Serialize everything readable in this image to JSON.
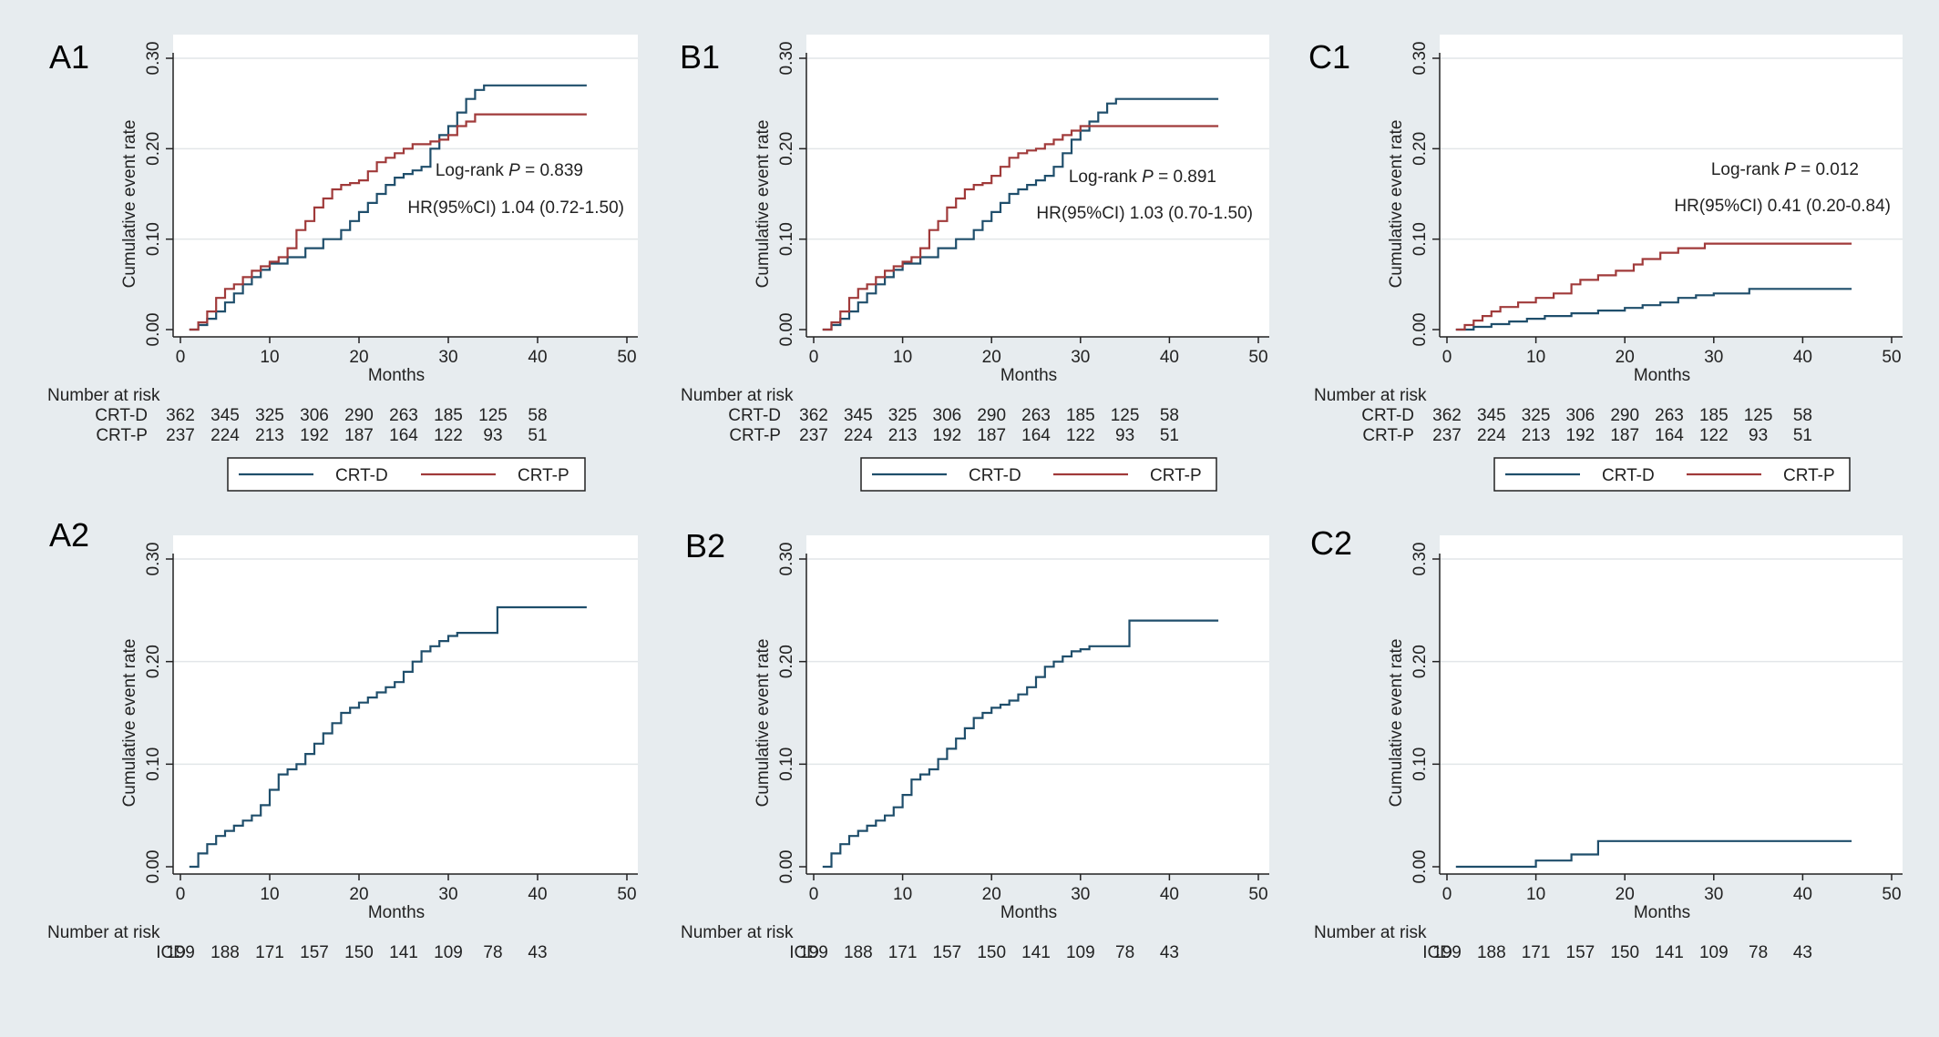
{
  "colors": {
    "background": "#e7ecef",
    "plot_area": "#ffffff",
    "gridline": "#e2e6e9",
    "crt_d": "#1f4e6b",
    "crt_p": "#a03a3a",
    "icd": "#1f4e6b"
  },
  "chart_data": [
    {
      "panel": "A1",
      "type": "line",
      "xlabel": "Months",
      "ylabel": "Cumulative event rate",
      "xlim": [
        0,
        50
      ],
      "ylim": [
        0,
        0.3
      ],
      "xticks": [
        "0",
        "10",
        "20",
        "30",
        "40",
        "50"
      ],
      "yticks": [
        "0.00",
        "0.10",
        "0.20",
        "0.30"
      ],
      "grid": true,
      "annotations": [
        {
          "prefix": "Log-rank ",
          "italic": "P",
          "suffix": " = 0.839"
        },
        {
          "text": "HR(95%CI) 1.04 (0.72-1.50)"
        }
      ],
      "series": [
        {
          "name": "CRT-D",
          "color": "#1f4e6b",
          "x": [
            1,
            2,
            3,
            4,
            5,
            6,
            7,
            8,
            9,
            10,
            12,
            14,
            16,
            18,
            19,
            20,
            21,
            22,
            23,
            24,
            25,
            26,
            27,
            28,
            29,
            30,
            31,
            32,
            33,
            34,
            45.5
          ],
          "y": [
            0,
            0.005,
            0.012,
            0.02,
            0.03,
            0.04,
            0.05,
            0.058,
            0.066,
            0.073,
            0.08,
            0.09,
            0.1,
            0.11,
            0.12,
            0.13,
            0.14,
            0.15,
            0.16,
            0.168,
            0.172,
            0.176,
            0.18,
            0.2,
            0.215,
            0.225,
            0.24,
            0.255,
            0.265,
            0.27,
            0.27
          ]
        },
        {
          "name": "CRT-P",
          "color": "#a03a3a",
          "x": [
            1,
            2,
            3,
            4,
            5,
            6,
            7,
            8,
            9,
            10,
            11,
            12,
            13,
            14,
            15,
            16,
            17,
            18,
            19,
            20,
            21,
            22,
            23,
            24,
            25,
            26,
            27,
            28,
            29,
            30,
            31,
            32,
            33,
            45.5
          ],
          "y": [
            0,
            0.008,
            0.02,
            0.035,
            0.045,
            0.05,
            0.058,
            0.065,
            0.07,
            0.075,
            0.08,
            0.09,
            0.11,
            0.12,
            0.135,
            0.145,
            0.155,
            0.16,
            0.162,
            0.165,
            0.175,
            0.185,
            0.19,
            0.195,
            0.2,
            0.205,
            0.205,
            0.208,
            0.21,
            0.215,
            0.225,
            0.23,
            0.238,
            0.238
          ]
        }
      ],
      "risk_table": {
        "title": "Number at risk",
        "rows": [
          {
            "label": "CRT-D",
            "values": [
              "362",
              "345",
              "325",
              "306",
              "290",
              "263",
              "185",
              "125",
              "58"
            ]
          },
          {
            "label": "CRT-P",
            "values": [
              "237",
              "224",
              "213",
              "192",
              "187",
              "164",
              "122",
              "93",
              "51"
            ]
          }
        ]
      },
      "legend": {
        "placement": "bottom",
        "items": [
          "CRT-D",
          "CRT-P"
        ]
      }
    },
    {
      "panel": "B1",
      "type": "line",
      "xlabel": "Months",
      "ylabel": "Cumulative event rate",
      "xlim": [
        0,
        50
      ],
      "ylim": [
        0,
        0.3
      ],
      "xticks": [
        "0",
        "10",
        "20",
        "30",
        "40",
        "50"
      ],
      "yticks": [
        "0.00",
        "0.10",
        "0.20",
        "0.30"
      ],
      "grid": true,
      "annotations": [
        {
          "prefix": "Log-rank ",
          "italic": "P",
          "suffix": " = 0.891"
        },
        {
          "text": "HR(95%CI) 1.03 (0.70-1.50)"
        }
      ],
      "series": [
        {
          "name": "CRT-D",
          "color": "#1f4e6b",
          "x": [
            1,
            2,
            3,
            4,
            5,
            6,
            7,
            8,
            9,
            10,
            12,
            14,
            16,
            18,
            19,
            20,
            21,
            22,
            23,
            24,
            25,
            26,
            27,
            28,
            29,
            30,
            31,
            32,
            33,
            34,
            45.5
          ],
          "y": [
            0,
            0.005,
            0.012,
            0.02,
            0.03,
            0.04,
            0.05,
            0.058,
            0.066,
            0.073,
            0.08,
            0.09,
            0.1,
            0.11,
            0.12,
            0.13,
            0.14,
            0.15,
            0.155,
            0.16,
            0.165,
            0.17,
            0.18,
            0.195,
            0.21,
            0.22,
            0.23,
            0.24,
            0.25,
            0.255,
            0.255
          ]
        },
        {
          "name": "CRT-P",
          "color": "#a03a3a",
          "x": [
            1,
            2,
            3,
            4,
            5,
            6,
            7,
            8,
            9,
            10,
            11,
            12,
            13,
            14,
            15,
            16,
            17,
            18,
            19,
            20,
            21,
            22,
            23,
            24,
            25,
            26,
            27,
            28,
            29,
            30,
            45.5
          ],
          "y": [
            0,
            0.008,
            0.02,
            0.035,
            0.045,
            0.05,
            0.058,
            0.065,
            0.07,
            0.075,
            0.08,
            0.09,
            0.11,
            0.12,
            0.135,
            0.145,
            0.155,
            0.16,
            0.162,
            0.17,
            0.18,
            0.19,
            0.195,
            0.198,
            0.2,
            0.205,
            0.21,
            0.215,
            0.22,
            0.225,
            0.225
          ]
        }
      ],
      "risk_table": {
        "title": "Number at risk",
        "rows": [
          {
            "label": "CRT-D",
            "values": [
              "362",
              "345",
              "325",
              "306",
              "290",
              "263",
              "185",
              "125",
              "58"
            ]
          },
          {
            "label": "CRT-P",
            "values": [
              "237",
              "224",
              "213",
              "192",
              "187",
              "164",
              "122",
              "93",
              "51"
            ]
          }
        ]
      },
      "legend": {
        "placement": "bottom",
        "items": [
          "CRT-D",
          "CRT-P"
        ]
      }
    },
    {
      "panel": "C1",
      "type": "line",
      "xlabel": "Months",
      "ylabel": "Cumulative event rate",
      "xlim": [
        0,
        50
      ],
      "ylim": [
        0,
        0.3
      ],
      "xticks": [
        "0",
        "10",
        "20",
        "30",
        "40",
        "50"
      ],
      "yticks": [
        "0.00",
        "0.10",
        "0.20",
        "0.30"
      ],
      "grid": true,
      "annotations": [
        {
          "prefix": "Log-rank ",
          "italic": "P",
          "suffix": " = 0.012"
        },
        {
          "text": "HR(95%CI) 0.41 (0.20-0.84)"
        }
      ],
      "series": [
        {
          "name": "CRT-D",
          "color": "#1f4e6b",
          "x": [
            1,
            3,
            5,
            7,
            9,
            11,
            14,
            17,
            20,
            22,
            24,
            26,
            28,
            30,
            34,
            45.5
          ],
          "y": [
            0,
            0.003,
            0.006,
            0.009,
            0.012,
            0.015,
            0.018,
            0.021,
            0.024,
            0.027,
            0.03,
            0.035,
            0.038,
            0.04,
            0.045,
            0.045
          ]
        },
        {
          "name": "CRT-P",
          "color": "#a03a3a",
          "x": [
            1,
            2,
            3,
            4,
            5,
            6,
            8,
            10,
            12,
            14,
            15,
            17,
            19,
            21,
            22,
            24,
            26,
            28,
            29,
            45.5
          ],
          "y": [
            0,
            0.005,
            0.01,
            0.015,
            0.02,
            0.025,
            0.03,
            0.035,
            0.04,
            0.05,
            0.055,
            0.06,
            0.065,
            0.072,
            0.078,
            0.085,
            0.09,
            0.09,
            0.095,
            0.095
          ]
        }
      ],
      "risk_table": {
        "title": "Number at risk",
        "rows": [
          {
            "label": "CRT-D",
            "values": [
              "362",
              "345",
              "325",
              "306",
              "290",
              "263",
              "185",
              "125",
              "58"
            ]
          },
          {
            "label": "CRT-P",
            "values": [
              "237",
              "224",
              "213",
              "192",
              "187",
              "164",
              "122",
              "93",
              "51"
            ]
          }
        ]
      },
      "legend": {
        "placement": "bottom",
        "items": [
          "CRT-D",
          "CRT-P"
        ]
      }
    },
    {
      "panel": "A2",
      "type": "line",
      "xlabel": "Months",
      "ylabel": "Cumulative event rate",
      "xlim": [
        0,
        50
      ],
      "ylim": [
        0,
        0.3
      ],
      "xticks": [
        "0",
        "10",
        "20",
        "30",
        "40",
        "50"
      ],
      "yticks": [
        "0.00",
        "0.10",
        "0.20",
        "0.30"
      ],
      "grid": true,
      "annotations": [],
      "series": [
        {
          "name": "ICD",
          "color": "#1f4e6b",
          "x": [
            1,
            2,
            3,
            4,
            5,
            6,
            7,
            8,
            9,
            10,
            11,
            12,
            13,
            14,
            15,
            16,
            17,
            18,
            19,
            20,
            21,
            22,
            23,
            24,
            25,
            26,
            27,
            28,
            29,
            30,
            31,
            35.5,
            45.5
          ],
          "y": [
            0,
            0.013,
            0.022,
            0.03,
            0.035,
            0.04,
            0.045,
            0.05,
            0.06,
            0.075,
            0.09,
            0.095,
            0.1,
            0.11,
            0.12,
            0.13,
            0.14,
            0.15,
            0.155,
            0.16,
            0.165,
            0.17,
            0.175,
            0.18,
            0.19,
            0.2,
            0.21,
            0.215,
            0.22,
            0.225,
            0.228,
            0.253,
            0.253
          ]
        }
      ],
      "risk_table": {
        "title": "Number at risk",
        "rows": [
          {
            "label": "ICD",
            "values": [
              "199",
              "188",
              "171",
              "157",
              "150",
              "141",
              "109",
              "78",
              "43"
            ]
          }
        ]
      },
      "legend": null
    },
    {
      "panel": "B2",
      "type": "line",
      "xlabel": "Months",
      "ylabel": "Cumulative event rate",
      "xlim": [
        0,
        50
      ],
      "ylim": [
        0,
        0.3
      ],
      "xticks": [
        "0",
        "10",
        "20",
        "30",
        "40",
        "50"
      ],
      "yticks": [
        "0.00",
        "0.10",
        "0.20",
        "0.30"
      ],
      "grid": true,
      "annotations": [],
      "series": [
        {
          "name": "ICD",
          "color": "#1f4e6b",
          "x": [
            1,
            2,
            3,
            4,
            5,
            6,
            7,
            8,
            9,
            10,
            11,
            12,
            13,
            14,
            15,
            16,
            17,
            18,
            19,
            20,
            21,
            22,
            23,
            24,
            25,
            26,
            27,
            28,
            29,
            30,
            31,
            35.5,
            45.5
          ],
          "y": [
            0,
            0.013,
            0.022,
            0.03,
            0.035,
            0.04,
            0.045,
            0.05,
            0.058,
            0.07,
            0.085,
            0.09,
            0.095,
            0.105,
            0.115,
            0.125,
            0.135,
            0.145,
            0.15,
            0.155,
            0.158,
            0.162,
            0.168,
            0.175,
            0.185,
            0.195,
            0.2,
            0.205,
            0.21,
            0.212,
            0.215,
            0.24,
            0.24
          ]
        }
      ],
      "risk_table": {
        "title": "Number at risk",
        "rows": [
          {
            "label": "ICD",
            "values": [
              "199",
              "188",
              "171",
              "157",
              "150",
              "141",
              "109",
              "78",
              "43"
            ]
          }
        ]
      },
      "legend": null
    },
    {
      "panel": "C2",
      "type": "line",
      "xlabel": "Months",
      "ylabel": "Cumulative event rate",
      "xlim": [
        0,
        50
      ],
      "ylim": [
        0,
        0.3
      ],
      "xticks": [
        "0",
        "10",
        "20",
        "30",
        "40",
        "50"
      ],
      "yticks": [
        "0.00",
        "0.10",
        "0.20",
        "0.30"
      ],
      "grid": true,
      "annotations": [],
      "series": [
        {
          "name": "ICD",
          "color": "#1f4e6b",
          "x": [
            1,
            10,
            14,
            17,
            45.5
          ],
          "y": [
            0,
            0.006,
            0.012,
            0.025,
            0.025
          ]
        }
      ],
      "risk_table": {
        "title": "Number at risk",
        "rows": [
          {
            "label": "ICD",
            "values": [
              "199",
              "188",
              "171",
              "157",
              "150",
              "141",
              "109",
              "78",
              "43"
            ]
          }
        ]
      },
      "legend": null
    }
  ]
}
